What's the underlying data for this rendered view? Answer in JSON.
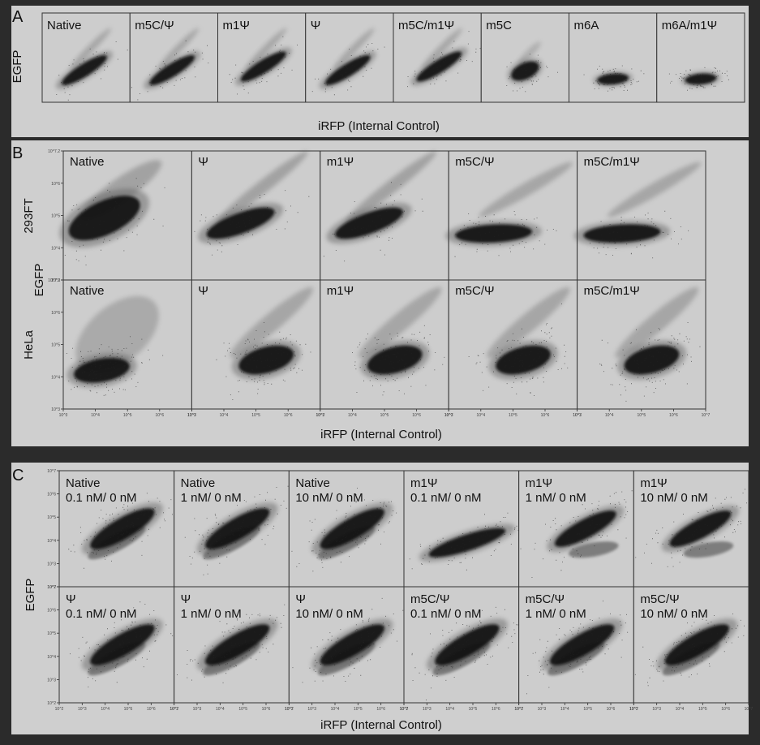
{
  "figure": {
    "colors": {
      "page": "#2b2b2b",
      "panel_bg": "#cfcfcf",
      "plot_bg": "#cdcdcd",
      "frame": "#333333",
      "dense": "#111111",
      "light": "#808080"
    },
    "panel_a": {
      "letter": "A",
      "ylabel": "EGFP",
      "xlabel": "iRFP (Internal Control)",
      "plots": [
        "Native",
        "m5C/Ψ",
        "m1Ψ",
        "Ψ",
        "m5C/m1Ψ",
        "m5C",
        "m6A",
        "m6A/m1Ψ"
      ]
    },
    "panel_b": {
      "letter": "B",
      "ylabel": "EGFP",
      "xlabel": "iRFP (Internal Control)",
      "rows": [
        {
          "cell_line": "293FT",
          "plots": [
            "Native",
            "Ψ",
            "m1Ψ",
            "m5C/Ψ",
            "m5C/m1Ψ"
          ]
        },
        {
          "cell_line": "HeLa",
          "plots": [
            "Native",
            "Ψ",
            "m1Ψ",
            "m5C/Ψ",
            "m5C/m1Ψ"
          ]
        }
      ],
      "y_ticks": [
        "10^3",
        "10^4",
        "10^5",
        "10^6",
        "10^7.2"
      ],
      "x_ticks": [
        "10^3",
        "10^4",
        "10^5",
        "10^6",
        "10^7"
      ]
    },
    "panel_c": {
      "letter": "C",
      "ylabel": "EGFP",
      "xlabel": "iRFP (Internal Control)",
      "rows": [
        {
          "plots": [
            {
              "modification": "Native",
              "dose": "0.1 nM/ 0 nM"
            },
            {
              "modification": "Native",
              "dose": "1 nM/ 0 nM"
            },
            {
              "modification": "Native",
              "dose": "10 nM/ 0 nM"
            },
            {
              "modification": "m1Ψ",
              "dose": "0.1 nM/ 0 nM"
            },
            {
              "modification": "m1Ψ",
              "dose": "1 nM/ 0 nM"
            },
            {
              "modification": "m1Ψ",
              "dose": "10 nM/ 0 nM"
            }
          ]
        },
        {
          "plots": [
            {
              "modification": "Ψ",
              "dose": "0.1 nM/ 0 nM"
            },
            {
              "modification": "Ψ",
              "dose": "1 nM/ 0 nM"
            },
            {
              "modification": "Ψ",
              "dose": "10 nM/ 0 nM"
            },
            {
              "modification": "m5C/Ψ",
              "dose": "0.1 nM/ 0 nM"
            },
            {
              "modification": "m5C/Ψ",
              "dose": "1 nM/ 0 nM"
            },
            {
              "modification": "m5C/Ψ",
              "dose": "10 nM/ 0 nM"
            }
          ]
        }
      ],
      "y_ticks": [
        "10^2",
        "10^3",
        "10^4",
        "10^5",
        "10^6",
        "10^7"
      ],
      "x_ticks": [
        "10^2",
        "10^3",
        "10^4",
        "10^5",
        "10^6",
        "10^7"
      ]
    }
  }
}
